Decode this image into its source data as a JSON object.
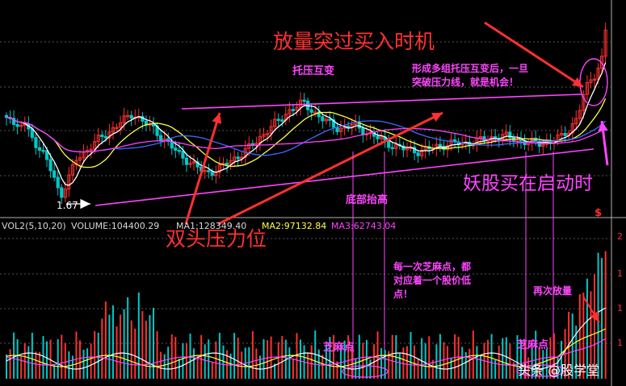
{
  "chart_data": [
    {
      "type": "candlestick",
      "panel": "price",
      "min_price_label": "1.67",
      "right_marker": "$",
      "colors": {
        "up": "#ff3030",
        "down": "#00c8c8",
        "ma_short": "#ffffff",
        "ma_mid": "#ffff40",
        "ma_long": "#ff40ff",
        "ma_longer": "#3c6cff",
        "trendline": "#ff44ff"
      },
      "annotations": {
        "volume_breakout": "放量突过买入时机",
        "support_resistance": "托压互变",
        "after_multiple": "形成多组托压互变后，一旦",
        "after_multiple_2": "突破压力线，就是机会！",
        "start_buy": "妖股买在启动时",
        "bottom_rising": "底部抬高",
        "double_top": "双头压力位"
      }
    },
    {
      "type": "bar",
      "panel": "volume",
      "indicator_label": "VOL2(5,10,20)",
      "volume_label": "VOLUME:104400.29",
      "ma1_label": "MA1:",
      "ma1_value": "128349.40",
      "ma2_label": "MA2:",
      "ma2_value": "97132.84",
      "ma3_label": "MA3:",
      "ma3_value": "62743.04",
      "right_axis_labels": [
        "2",
        "1",
        "1",
        "1"
      ],
      "annotations": {
        "sesame_point_left": "芝麻点",
        "sesame_point_right": "芝麻点",
        "each_sesame": "每一次芝麻点，都",
        "each_sesame_2": "对应着一个股价低",
        "each_sesame_3": "点！",
        "volume_again": "再次放量"
      }
    }
  ],
  "watermark": "头条 @股学堂"
}
